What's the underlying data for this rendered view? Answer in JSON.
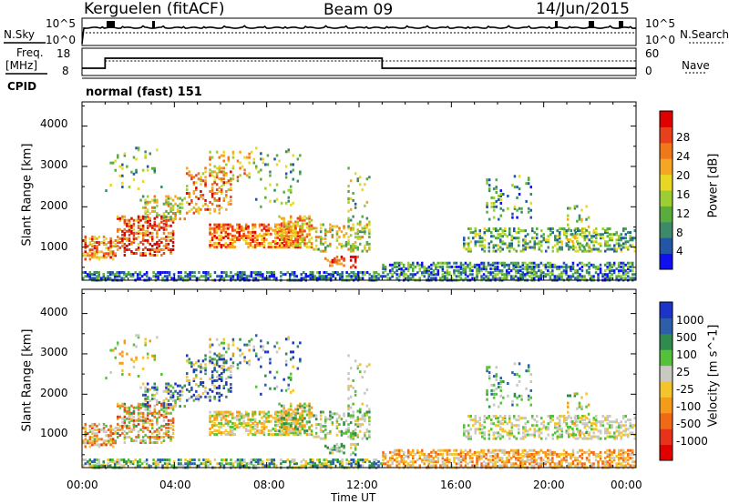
{
  "header": {
    "station": "Kerguelen (fitACF)",
    "beam": "Beam 09",
    "date": "14/Jun/2015"
  },
  "labels": {
    "nsky": "N.Sky",
    "nsearch": "N.Search",
    "freq_line1": "Freq.",
    "freq_line2": "[MHz]",
    "nave": "Nave",
    "cpid": "CPID",
    "cpid_value": "normal (fast) 151"
  },
  "noise_panel": {
    "left_ticks": [
      "10^5",
      "10^0"
    ],
    "right_ticks": [
      "10^5",
      "10^0"
    ]
  },
  "freq_panel": {
    "left_ticks": [
      "18",
      "8"
    ],
    "right_ticks": [
      "60",
      "0"
    ]
  },
  "chart_data": [
    {
      "type": "heatmap",
      "name": "power",
      "xlabel": "",
      "ylabel": "Slant Range [km]",
      "xlim": [
        0,
        24
      ],
      "ylim": [
        180,
        4600
      ],
      "y_ticks": [
        "1000",
        "2000",
        "3000",
        "4000"
      ],
      "colorbar": {
        "label": "Power [dB]",
        "ticks": [
          "4",
          "8",
          "12",
          "16",
          "20",
          "24",
          "28"
        ],
        "colors": [
          "#1010ee",
          "#2456a6",
          "#3c8a6a",
          "#58ad3e",
          "#9ccd32",
          "#e8d824",
          "#f5a623",
          "#f07818",
          "#e8401a",
          "#e00000"
        ]
      }
    },
    {
      "type": "heatmap",
      "name": "velocity",
      "xlabel": "Time UT",
      "ylabel": "Slant Range [km]",
      "xlim": [
        0,
        24
      ],
      "ylim": [
        180,
        4600
      ],
      "x_ticks": [
        "00:00",
        "04:00",
        "08:00",
        "12:00",
        "16:00",
        "20:00",
        "00:00"
      ],
      "y_ticks": [
        "1000",
        "2000",
        "3000",
        "4000"
      ],
      "colorbar": {
        "label": "Velocity [m s^-1]",
        "ticks": [
          "1000",
          "500",
          "100",
          "25",
          "-25",
          "-100",
          "-500",
          "-1000"
        ],
        "colors": [
          "#1c35c8",
          "#2d5fa8",
          "#2f8c4e",
          "#55c13a",
          "#c9c9c2",
          "#f3c42c",
          "#f59b1a",
          "#f06a15",
          "#e8331a",
          "#e00000"
        ]
      }
    }
  ]
}
